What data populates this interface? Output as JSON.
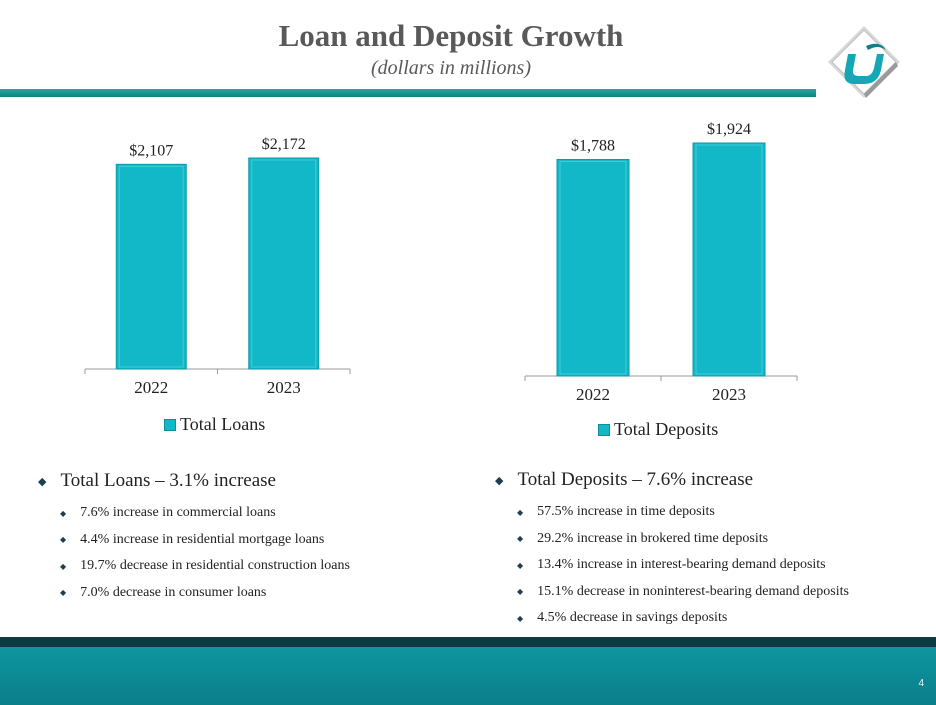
{
  "header": {
    "title": "Loan and Deposit Growth",
    "subtitle": "(dollars in millions)"
  },
  "logo": {
    "icon": "bank-logo-icon"
  },
  "chart_data": [
    {
      "type": "bar",
      "categories": [
        "2022",
        "2023"
      ],
      "series": [
        {
          "name": "Total Loans",
          "values": [
            2107,
            2172
          ]
        }
      ],
      "value_labels": [
        "$2,107",
        "$2,172"
      ],
      "legend": "bottom",
      "grid": false,
      "color": "#13b8c8"
    },
    {
      "type": "bar",
      "categories": [
        "2022",
        "2023"
      ],
      "series": [
        {
          "name": "Total Deposits",
          "values": [
            1788,
            1924
          ]
        }
      ],
      "value_labels": [
        "$1,788",
        "$1,924"
      ],
      "legend": "bottom",
      "grid": false,
      "color": "#13b8c8"
    }
  ],
  "loans_summary": {
    "heading": "Total Loans – 3.1% increase",
    "items": [
      "7.6% increase in commercial loans",
      "4.4% increase in residential mortgage loans",
      "19.7% decrease in residential construction loans",
      "7.0% decrease in consumer loans"
    ]
  },
  "deposits_summary": {
    "heading": "Total Deposits – 7.6% increase",
    "items": [
      "57.5% increase in time deposits",
      "29.2% increase in brokered time deposits",
      "13.4% increase in interest-bearing demand deposits",
      "15.1% decrease in noninterest-bearing demand deposits",
      "4.5% decrease in savings deposits"
    ]
  },
  "footer": {
    "page_number": "4"
  }
}
